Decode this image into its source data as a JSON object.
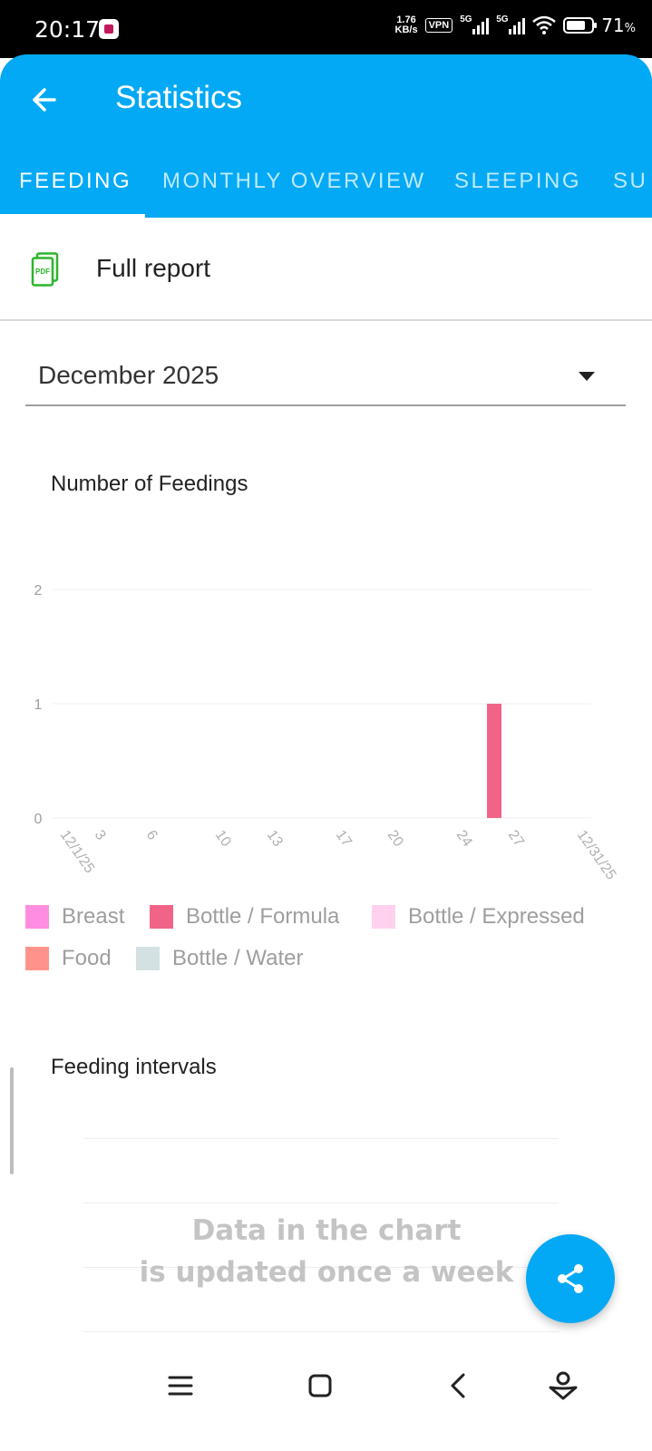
{
  "status_bar": {
    "time": "20:17",
    "net_speed_value": "1.76",
    "net_speed_unit": "KB/s",
    "vpn": "VPN",
    "sim1": "5G",
    "sim2": "5G",
    "battery_percent": "71",
    "battery_symbol": "%"
  },
  "header": {
    "title": "Statistics",
    "back_icon": "arrow-left-icon"
  },
  "tabs": [
    {
      "label": "FEEDING",
      "active": true
    },
    {
      "label": "MONTHLY OVERVIEW",
      "active": false
    },
    {
      "label": "SLEEPING",
      "active": false
    },
    {
      "label": "SU",
      "active": false
    }
  ],
  "report": {
    "label": "Full report",
    "icon": "pdf-file-icon",
    "icon_text": "PDF"
  },
  "month_select": {
    "value": "December 2025"
  },
  "feedings_chart": {
    "title": "Number of Feedings"
  },
  "chart_data": {
    "type": "bar",
    "title": "Number of Feedings",
    "xlabel": "",
    "ylabel": "",
    "ylim": [
      0,
      2
    ],
    "y_ticks": [
      "0",
      "1",
      "2"
    ],
    "x_tick_labels": [
      "12/1/25",
      "3",
      "6",
      "10",
      "13",
      "17",
      "20",
      "24",
      "27",
      "12/31/25"
    ],
    "x_tick_days": [
      1,
      3,
      6,
      10,
      13,
      17,
      20,
      24,
      27,
      31
    ],
    "x_range_days": [
      1,
      31
    ],
    "grid": true,
    "legend_position": "bottom",
    "series": [
      {
        "name": "Breast",
        "color": "#ff8ee0",
        "points": []
      },
      {
        "name": "Bottle / Formula",
        "color": "#f06587",
        "points": [
          {
            "day": 26,
            "value": 1
          }
        ]
      },
      {
        "name": "Bottle / Expressed",
        "color": "#ffd1ee",
        "points": []
      },
      {
        "name": "Food",
        "color": "#ff938a",
        "points": []
      },
      {
        "name": "Bottle / Water",
        "color": "#d4e1e3",
        "points": []
      }
    ]
  },
  "intervals_chart": {
    "title": "Feeding intervals",
    "overlay_line1": "Data in the chart",
    "overlay_line2": "is updated once a week"
  },
  "fab": {
    "icon": "share-icon"
  },
  "nav_bar": {
    "menu_icon": "menu-icon",
    "home_icon": "home-square-icon",
    "back_icon": "back-chevron-icon",
    "assistant_icon": "assistant-icon"
  },
  "colors": {
    "primary": "#03a9f4",
    "pdf_green": "#2bb52b"
  }
}
